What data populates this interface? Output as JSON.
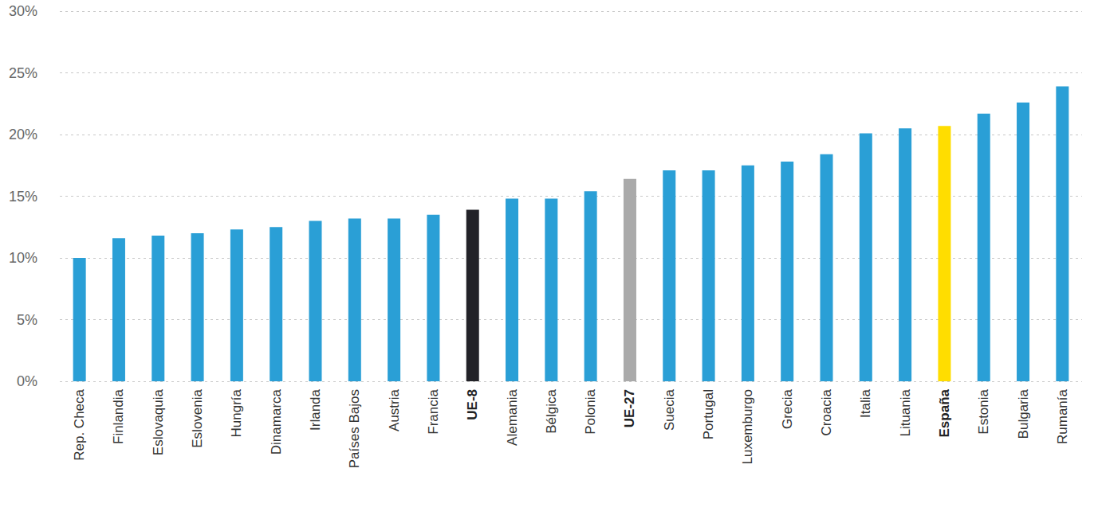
{
  "chart_data": {
    "type": "bar",
    "categories": [
      "Rep. Checa",
      "Finlandia",
      "Eslovaquia",
      "Eslovenia",
      "Hungría",
      "Dinamarca",
      "Irlanda",
      "Países Bajos",
      "Austria",
      "Francia",
      "UE-8",
      "Alemania",
      "Bélgica",
      "Polonia",
      "UE-27",
      "Suecia",
      "Portugal",
      "Luxemburgo",
      "Grecia",
      "Croacia",
      "Italia",
      "Lituania",
      "España",
      "Estonia",
      "Bulgaria",
      "Rumanía"
    ],
    "values": [
      10.0,
      11.6,
      11.8,
      12.0,
      12.3,
      12.5,
      13.0,
      13.2,
      13.2,
      13.5,
      13.9,
      14.8,
      14.8,
      15.4,
      16.4,
      17.1,
      17.1,
      17.5,
      17.8,
      18.4,
      20.1,
      20.5,
      20.7,
      21.7,
      22.6,
      23.9
    ],
    "colors": [
      "#2a9fd6",
      "#2a9fd6",
      "#2a9fd6",
      "#2a9fd6",
      "#2a9fd6",
      "#2a9fd6",
      "#2a9fd6",
      "#2a9fd6",
      "#2a9fd6",
      "#2a9fd6",
      "#222228",
      "#2a9fd6",
      "#2a9fd6",
      "#2a9fd6",
      "#aaaaaa",
      "#2a9fd6",
      "#2a9fd6",
      "#2a9fd6",
      "#2a9fd6",
      "#2a9fd6",
      "#2a9fd6",
      "#2a9fd6",
      "#ffdd00",
      "#2a9fd6",
      "#2a9fd6",
      "#2a9fd6"
    ],
    "ylim": [
      0,
      30
    ],
    "yticks": [
      {
        "value": 0,
        "label": "0%"
      },
      {
        "value": 5,
        "label": "5%"
      },
      {
        "value": 10,
        "label": "10%"
      },
      {
        "value": 15,
        "label": "15%"
      },
      {
        "value": 20,
        "label": "20%"
      },
      {
        "value": 25,
        "label": "25%"
      },
      {
        "value": 30,
        "label": "30%"
      }
    ],
    "grid": true
  }
}
